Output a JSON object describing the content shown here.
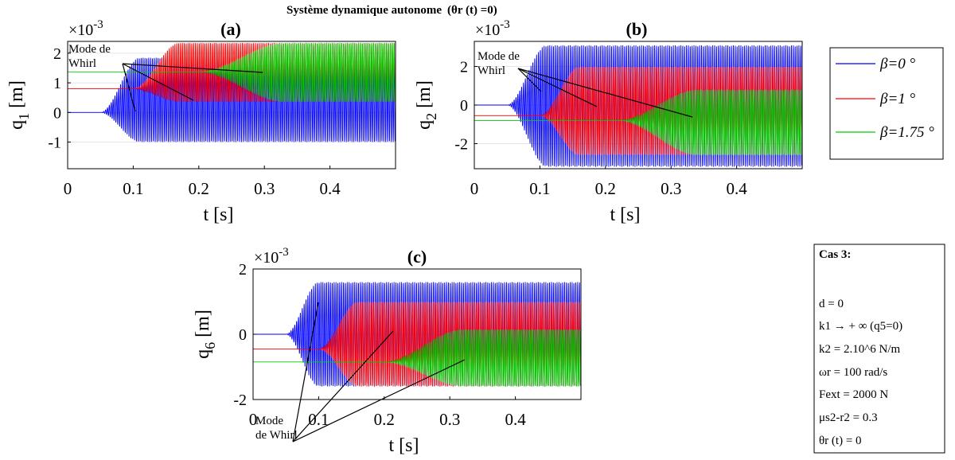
{
  "title": "Système dynamique autonome",
  "title_suffix": "(θr (t) =0)",
  "legend": {
    "entries": [
      {
        "label": "β=0 °",
        "color": "#0000ff"
      },
      {
        "label": "β=1 °",
        "color": "#ff0000"
      },
      {
        "label": "β=1.75 °",
        "color": "#00cc00"
      }
    ]
  },
  "info_box": {
    "heading": "Cas 3:",
    "lines": [
      "d = 0",
      "k1 → + ∞ (q5=0)",
      "k2 = 2.10^6 N/m",
      "ωr = 100 rad/s",
      "Fext = 2000 N",
      "μs2-r2 = 0.3",
      "θr (t) = 0"
    ]
  },
  "chart_data": [
    {
      "type": "line",
      "panel_label": "(a)",
      "ylabel": "q1 [m]",
      "xlabel": "t [s]",
      "multiplier": "×10^-3",
      "xlim": [
        0,
        0.5
      ],
      "ylim": [
        -1.9,
        2.4
      ],
      "xticks": [
        0,
        0.1,
        0.2,
        0.3,
        0.4
      ],
      "xticklabels": [
        "0",
        "0.1",
        "0.2",
        "0.3",
        "0.4"
      ],
      "yticks": [
        -1,
        0,
        1,
        2
      ],
      "yticklabels": [
        "-1",
        "0",
        "1",
        "2"
      ],
      "grid": true,
      "annotation": "Mode de Whirl",
      "series": [
        {
          "name": "β=0 °",
          "color": "#0000ff",
          "initial": 0.0,
          "onset": 0.05,
          "rise_end": 0.11,
          "final_min": -1.0,
          "final_max": 1.85,
          "osc_freq": 350
        },
        {
          "name": "β=1 °",
          "color": "#ff0000",
          "initial": 0.8,
          "onset": 0.1,
          "rise_end": 0.17,
          "final_min": 0.35,
          "final_max": 2.35,
          "osc_freq": 350
        },
        {
          "name": "β=1.75 °",
          "color": "#00cc00",
          "initial": 1.37,
          "onset": 0.2,
          "rise_end": 0.33,
          "final_min": 0.35,
          "final_max": 2.35,
          "osc_freq": 350
        }
      ]
    },
    {
      "type": "line",
      "panel_label": "(b)",
      "ylabel": "q2 [m]",
      "xlabel": "t [s]",
      "multiplier": "×10^-3",
      "xlim": [
        0,
        0.5
      ],
      "ylim": [
        -3.3,
        3.3
      ],
      "xticks": [
        0,
        0.1,
        0.2,
        0.3,
        0.4
      ],
      "xticklabels": [
        "0",
        "0.1",
        "0.2",
        "0.3",
        "0.4"
      ],
      "yticks": [
        -2,
        0,
        2
      ],
      "yticklabels": [
        "-2",
        "0",
        "2"
      ],
      "grid": true,
      "annotation": "Mode de Whirl",
      "series": [
        {
          "name": "β=0 °",
          "color": "#0000ff",
          "initial": 0.0,
          "onset": 0.05,
          "rise_end": 0.11,
          "final_min": -3.2,
          "final_max": 3.1,
          "osc_freq": 350
        },
        {
          "name": "β=1 °",
          "color": "#ff0000",
          "initial": -0.55,
          "onset": 0.1,
          "rise_end": 0.16,
          "final_min": -2.6,
          "final_max": 2.0,
          "osc_freq": 350
        },
        {
          "name": "β=1.75 °",
          "color": "#00cc00",
          "initial": -0.8,
          "onset": 0.22,
          "rise_end": 0.34,
          "final_min": -2.6,
          "final_max": 0.8,
          "osc_freq": 350
        }
      ]
    },
    {
      "type": "line",
      "panel_label": "(c)",
      "ylabel": "q6 [m]",
      "xlabel": "t [s]",
      "multiplier": "×10^-3",
      "xlim": [
        0,
        0.5
      ],
      "ylim": [
        -2,
        2
      ],
      "xticks": [
        0,
        0.1,
        0.2,
        0.3,
        0.4
      ],
      "xticklabels": [
        "0",
        "0.1",
        "0.2",
        "0.3",
        "0.4"
      ],
      "yticks": [
        -2,
        0,
        2
      ],
      "yticklabels": [
        "-2",
        "0",
        "2"
      ],
      "grid": true,
      "annotation": "Mode de Whirl",
      "series": [
        {
          "name": "β=0 °",
          "color": "#0000ff",
          "initial": 0.0,
          "onset": 0.05,
          "rise_end": 0.1,
          "final_min": -1.6,
          "final_max": 1.6,
          "osc_freq": 350
        },
        {
          "name": "β=1 °",
          "color": "#ff0000",
          "initial": -0.45,
          "onset": 0.1,
          "rise_end": 0.16,
          "final_min": -1.6,
          "final_max": 1.0,
          "osc_freq": 350
        },
        {
          "name": "β=1.75 °",
          "color": "#00cc00",
          "initial": -0.85,
          "onset": 0.2,
          "rise_end": 0.32,
          "final_min": -1.6,
          "final_max": 0.15,
          "osc_freq": 350
        }
      ]
    }
  ]
}
